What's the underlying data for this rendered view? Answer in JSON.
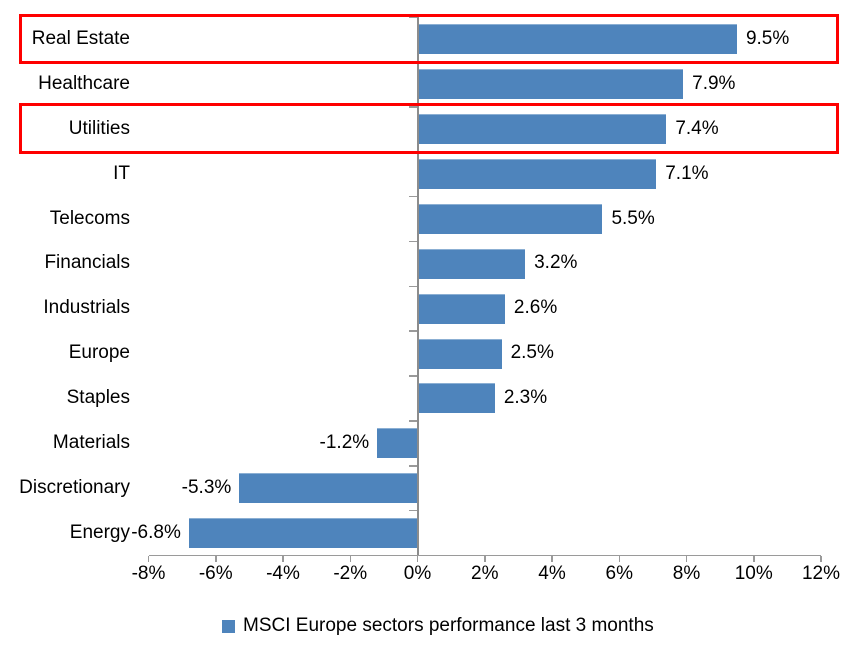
{
  "chart_data": {
    "type": "bar",
    "orientation": "horizontal",
    "title": "",
    "categories": [
      "Real Estate",
      "Healthcare",
      "Utilities",
      "IT",
      "Telecoms",
      "Financials",
      "Industrials",
      "Europe",
      "Staples",
      "Materials",
      "Discretionary",
      "Energy"
    ],
    "values": [
      9.5,
      7.9,
      7.4,
      7.1,
      5.5,
      3.2,
      2.6,
      2.5,
      2.3,
      -1.2,
      -5.3,
      -6.8
    ],
    "data_labels": [
      "9.5%",
      "7.9%",
      "7.4%",
      "7.1%",
      "5.5%",
      "3.2%",
      "2.6%",
      "2.5%",
      "2.3%",
      "-1.2%",
      "-5.3%",
      "-6.8%"
    ],
    "xlabel": "",
    "ylabel": "",
    "xlim": [
      -8,
      12
    ],
    "x_tick_values": [
      -8,
      -6,
      -4,
      -2,
      0,
      2,
      4,
      6,
      8,
      10,
      12
    ],
    "x_tick_labels": [
      "-8%",
      "-6%",
      "-4%",
      "-2%",
      "0%",
      "2%",
      "4%",
      "6%",
      "8%",
      "10%",
      "12%"
    ],
    "grid": false,
    "legend_position": "bottom",
    "series_name": "MSCI Europe sectors performance last 3 months",
    "bar_color": "#4E84BC",
    "axis_color": "#9A9A9A",
    "text_color": "#000000",
    "highlight_color": "#FE0000",
    "highlighted_categories": [
      "Real Estate",
      "Utilities"
    ]
  },
  "legend": {
    "label": "MSCI Europe sectors performance last 3 months",
    "marker_color": "#4E84BC"
  }
}
